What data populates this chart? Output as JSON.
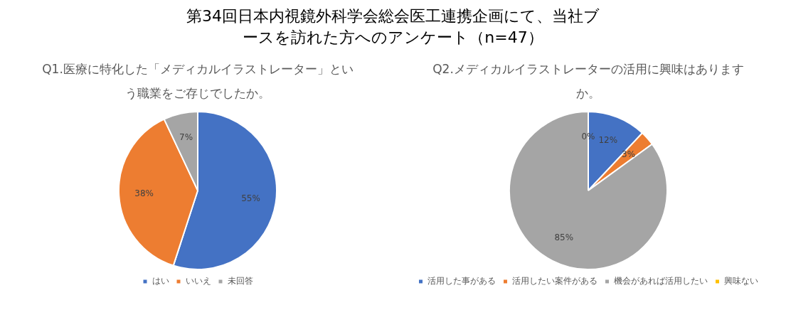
{
  "chart_data": [
    {
      "type": "other",
      "title": "第34回日本内視鏡外科学会総会医工連携企画にて、当社ブースを訪れた方へのアンケート（n=47）"
    },
    {
      "type": "pie",
      "title": "Q1.医療に特化した「メディカルイラストレーター」という職業をご存じでしたか。",
      "categories": [
        "はい",
        "いいえ",
        "未回答"
      ],
      "values": [
        55,
        38,
        7
      ],
      "value_labels": [
        "55%",
        "38%",
        "7%"
      ],
      "colors": [
        "#4472c4",
        "#ed7d31",
        "#a5a5a5"
      ],
      "legend": "bottom"
    },
    {
      "type": "pie",
      "title": "Q2.メディカルイラストレーターの活用に興味はありますか。",
      "categories": [
        "活用した事がある",
        "活用したい案件がある",
        "機会があれば活用したい",
        "興味ない"
      ],
      "values": [
        12,
        3,
        85,
        0
      ],
      "value_labels": [
        "12%",
        "3%",
        "85%",
        "0%"
      ],
      "colors": [
        "#4472c4",
        "#ed7d31",
        "#a5a5a5",
        "#ffc000"
      ],
      "legend": "bottom"
    }
  ]
}
